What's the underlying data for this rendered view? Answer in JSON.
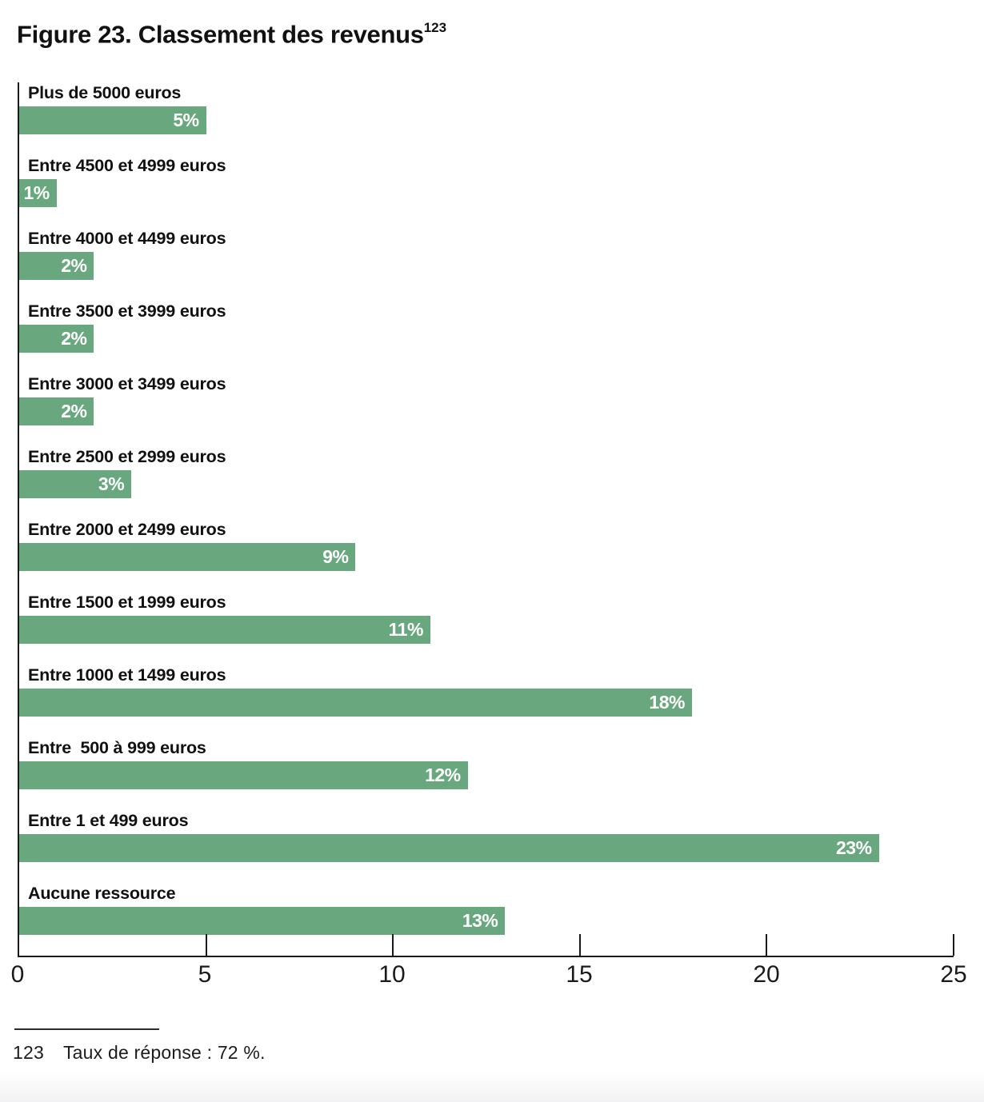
{
  "page": {
    "title": "Figure 23. Classement des revenus",
    "title_superscript": "123"
  },
  "chart_data": {
    "type": "bar",
    "orientation": "horizontal",
    "title": "Figure 23. Classement des revenus",
    "categories": [
      "Plus de 5000 euros",
      "Entre 4500 et 4999 euros",
      "Entre 4000 et 4499 euros",
      "Entre 3500 et 3999 euros",
      "Entre 3000 et 3499 euros",
      "Entre 2500 et 2999 euros",
      "Entre 2000 et 2499 euros",
      "Entre 1500 et 1999 euros",
      "Entre 1000 et 1499 euros",
      "Entre  500 à 999 euros",
      "Entre 1 et 499 euros",
      "Aucune ressource"
    ],
    "values": [
      5,
      1,
      2,
      2,
      2,
      3,
      9,
      11,
      18,
      12,
      23,
      13
    ],
    "value_labels": [
      "5%",
      "1%",
      "2%",
      "2%",
      "2%",
      "3%",
      "9%",
      "11%",
      "18%",
      "12%",
      "23%",
      "13%"
    ],
    "xlabel": "",
    "ylabel": "",
    "xlim": [
      0,
      25
    ],
    "x_ticks": [
      "0",
      "5",
      "10",
      "15",
      "20",
      "25"
    ],
    "grid": "off",
    "legend": "none",
    "bar_color": "#69a87f",
    "value_label_color": "#ffffff",
    "axis_color": "#1a1a1a"
  },
  "footnote": {
    "ref": "123",
    "text": "Taux de réponse : 72 %."
  }
}
